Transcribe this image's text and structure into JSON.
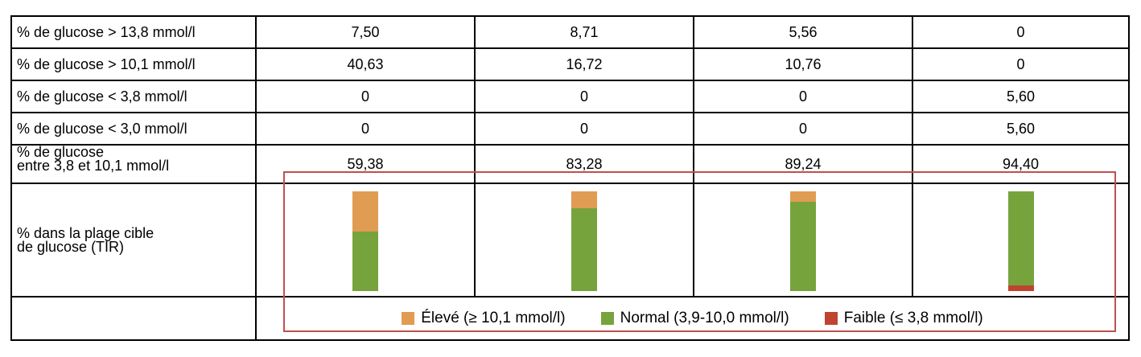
{
  "rows": [
    {
      "label": "% de glucose > 13,8 mmol/l",
      "values": [
        "7,50",
        "8,71",
        "5,56",
        "0"
      ]
    },
    {
      "label": "% de glucose > 10,1 mmol/l",
      "values": [
        "40,63",
        "16,72",
        "10,76",
        "0"
      ]
    },
    {
      "label": "% de glucose < 3,8 mmol/l",
      "values": [
        "0",
        "0",
        "0",
        "5,60"
      ]
    },
    {
      "label": "% de glucose < 3,0 mmol/l",
      "values": [
        "0",
        "0",
        "0",
        "5,60"
      ]
    },
    {
      "label": "% de glucose\nentre 3,8 et 10,1 mmol/l",
      "values": [
        "59,38",
        "83,28",
        "89,24",
        "94,40"
      ]
    }
  ],
  "tir_row": {
    "label": "% dans la plage cible\nde glucose (TIR)"
  },
  "chart_data": {
    "type": "bar",
    "stacked": true,
    "categories": [
      "1",
      "2",
      "3",
      "4"
    ],
    "series": [
      {
        "name": "Élevé (≥ 10,1 mmol/l)",
        "color": "#e09c52",
        "values": [
          40.63,
          16.72,
          10.76,
          0
        ]
      },
      {
        "name": "Normal (3,9-10,0 mmol/l)",
        "color": "#77a33d",
        "values": [
          59.38,
          83.28,
          89.24,
          94.4
        ]
      },
      {
        "name": "Faible (≤ 3,8 mmol/l)",
        "color": "#c0432f",
        "values": [
          0,
          0,
          0,
          5.6
        ]
      }
    ],
    "ylim": [
      0,
      100
    ]
  },
  "colors": {
    "highlight": "#c0504d"
  }
}
